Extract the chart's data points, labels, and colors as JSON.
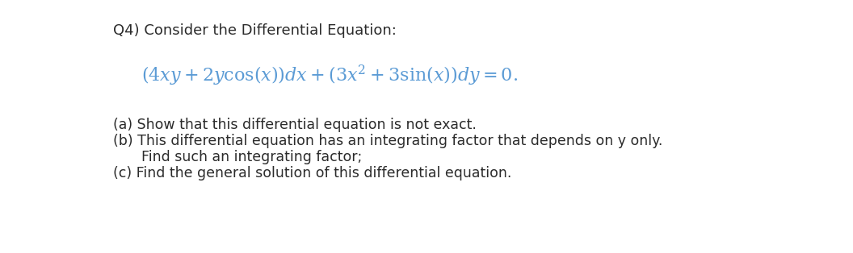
{
  "title_text": "Q4) Consider the Differential Equation:",
  "equation_latex": "$(4xy + 2y\\cos(x))dx + (3x^2 + 3\\sin(x))dy = 0.$",
  "part_a": "(a) Show that this differential equation is not exact.",
  "part_b1": "(b) This differential equation has an integrating factor that depends on y only.",
  "part_b2": "     Find such an integrating factor;",
  "part_c": "(c) Find the general solution of this differential equation.",
  "background_color": "#ffffff",
  "title_color": "#2b2b2b",
  "equation_color": "#5b9bd5",
  "text_color": "#2b2b2b",
  "title_fontsize": 13,
  "equation_fontsize": 16,
  "body_fontsize": 12.5,
  "fig_width": 10.56,
  "fig_height": 3.14,
  "dpi": 100
}
